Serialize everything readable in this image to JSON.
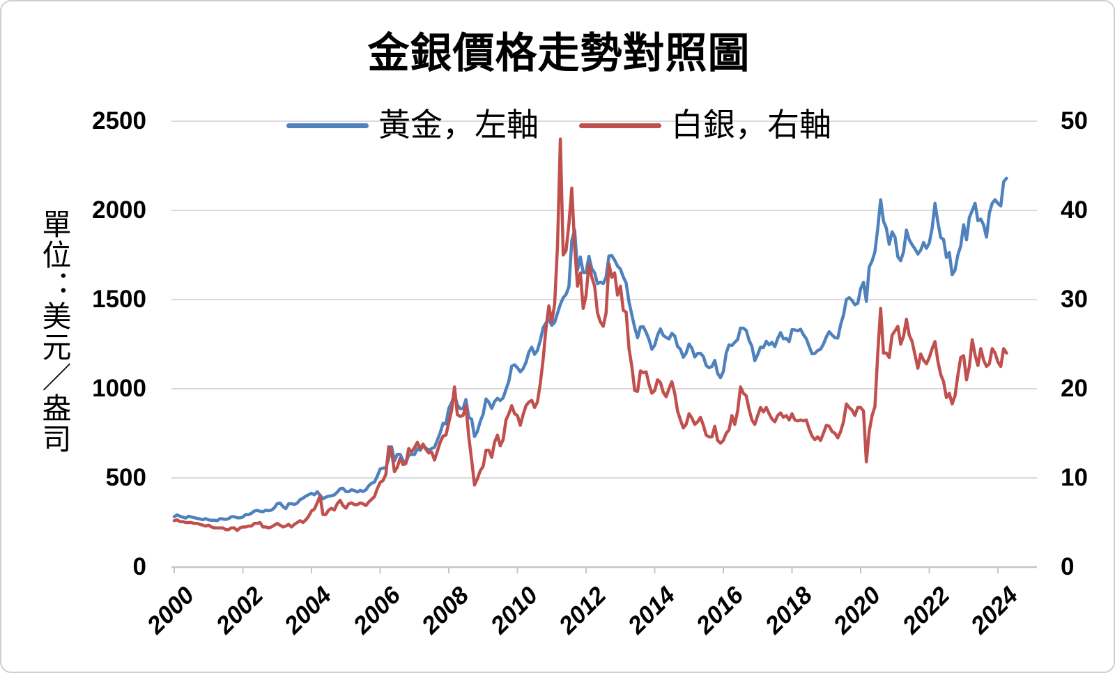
{
  "title": "金銀價格走勢對照圖",
  "y_left": {
    "title": "單位：美元／盎司",
    "ticks": [
      0,
      500,
      1000,
      1500,
      2000,
      2500
    ]
  },
  "y_right": {
    "ticks": [
      0,
      10,
      20,
      30,
      40,
      50
    ]
  },
  "x_axis": {
    "ticks": [
      2000,
      2002,
      2004,
      2006,
      2008,
      2010,
      2012,
      2014,
      2016,
      2018,
      2020,
      2022,
      2024
    ]
  },
  "legend": [
    {
      "label": "黃金，左軸",
      "color": "#4F81BD"
    },
    {
      "label": "白銀，右軸",
      "color": "#C0504D"
    }
  ],
  "colors": {
    "gold": "#4F81BD",
    "silver": "#C0504D",
    "grid": "#D9D9D9",
    "axis": "#C6C6C6",
    "text": "#000000"
  },
  "chart_data": {
    "type": "line",
    "title": "金銀價格走勢對照圖",
    "x_start_year": 2000,
    "x_step_months": 1,
    "x_end_approx": 2024.25,
    "x_tick_labels": [
      2000,
      2002,
      2004,
      2006,
      2008,
      2010,
      2012,
      2014,
      2016,
      2018,
      2020,
      2022,
      2024
    ],
    "grid": "horizontal",
    "legend_position": "top-center",
    "series": [
      {
        "name": "黃金，左軸",
        "axis": "left",
        "unit": "USD/oz",
        "color": "#4F81BD",
        "ylim": [
          0,
          2500
        ],
        "values": [
          283,
          293,
          285,
          280,
          275,
          285,
          281,
          277,
          273,
          270,
          266,
          272,
          265,
          262,
          263,
          260,
          272,
          270,
          267,
          272,
          283,
          283,
          276,
          276,
          281,
          295,
          294,
          302,
          314,
          318,
          313,
          310,
          319,
          316,
          319,
          332,
          356,
          359,
          340,
          328,
          355,
          356,
          351,
          359,
          378,
          386,
          398,
          406,
          414,
          405,
          423,
          403,
          383,
          392,
          398,
          400,
          405,
          420,
          439,
          442,
          424,
          423,
          434,
          429,
          421,
          430,
          424,
          433,
          456,
          470,
          476,
          510,
          550,
          555,
          557,
          610,
          675,
          596,
          633,
          632,
          599,
          585,
          627,
          632,
          631,
          664,
          655,
          679,
          667,
          655,
          665,
          672,
          712,
          754,
          806,
          803,
          890,
          922,
          968,
          909,
          888,
          889,
          940,
          839,
          829,
          732,
          760,
          816,
          858,
          943,
          924,
          890,
          928,
          946,
          934,
          949,
          996,
          1043,
          1127,
          1134,
          1118,
          1095,
          1113,
          1148,
          1205,
          1233,
          1193,
          1215,
          1271,
          1342,
          1369,
          1391,
          1356,
          1372,
          1424,
          1473,
          1510,
          1529,
          1573,
          1830,
          1890,
          1666,
          1739,
          1652,
          1652,
          1742,
          1673,
          1650,
          1589,
          1598,
          1590,
          1626,
          1744,
          1747,
          1721,
          1688,
          1671,
          1627,
          1593,
          1487,
          1414,
          1343,
          1286,
          1347,
          1348,
          1316,
          1276,
          1221,
          1244,
          1301,
          1336,
          1299,
          1288,
          1279,
          1311,
          1296,
          1237,
          1222,
          1176,
          1200,
          1251,
          1227,
          1178,
          1198,
          1199,
          1181,
          1130,
          1118,
          1125,
          1159,
          1086,
          1062,
          1097,
          1200,
          1246,
          1242,
          1260,
          1276,
          1340,
          1340,
          1327,
          1272,
          1238,
          1157,
          1192,
          1234,
          1231,
          1266,
          1246,
          1260,
          1236,
          1283,
          1315,
          1280,
          1282,
          1264,
          1331,
          1330,
          1325,
          1334,
          1303,
          1281,
          1238,
          1196,
          1198,
          1215,
          1221,
          1250,
          1291,
          1320,
          1301,
          1286,
          1284,
          1359,
          1413,
          1500,
          1511,
          1495,
          1471,
          1479,
          1561,
          1597,
          1490,
          1683,
          1716,
          1768,
          1900,
          2060,
          1940,
          1900,
          1810,
          1880,
          1850,
          1740,
          1718,
          1768,
          1890,
          1835,
          1807,
          1784,
          1755,
          1777,
          1820,
          1787,
          1817,
          1900,
          2040,
          1934,
          1848,
          1837,
          1736,
          1765,
          1640,
          1664,
          1750,
          1800,
          1920,
          1835,
          1960,
          1999,
          2040,
          1942,
          1951,
          1918,
          1850,
          1985,
          2040,
          2060,
          2039,
          2025,
          2160,
          2180
        ]
      },
      {
        "name": "白銀，右軸",
        "axis": "right",
        "unit": "USD/oz",
        "color": "#C0504D",
        "ylim": [
          0,
          50
        ],
        "values": [
          5.2,
          5.3,
          5.1,
          5.1,
          5.0,
          5.0,
          5.0,
          4.9,
          4.9,
          4.8,
          4.7,
          4.6,
          4.7,
          4.5,
          4.4,
          4.4,
          4.4,
          4.4,
          4.2,
          4.2,
          4.4,
          4.4,
          4.1,
          4.4,
          4.5,
          4.5,
          4.6,
          4.6,
          4.9,
          4.9,
          5.0,
          4.5,
          4.5,
          4.4,
          4.5,
          4.7,
          4.9,
          4.7,
          4.5,
          4.6,
          4.8,
          4.5,
          4.8,
          5.0,
          5.2,
          5.0,
          5.3,
          5.7,
          6.3,
          6.5,
          7.2,
          8.0,
          5.9,
          5.9,
          6.4,
          6.6,
          6.4,
          7.1,
          7.5,
          6.9,
          6.6,
          7.1,
          7.2,
          7.0,
          7.0,
          7.2,
          7.1,
          6.9,
          7.3,
          7.6,
          7.9,
          8.8,
          9.5,
          9.7,
          10.4,
          13.5,
          13.0,
          10.7,
          11.2,
          12.2,
          11.5,
          11.6,
          13.3,
          12.9,
          13.4,
          14.0,
          13.3,
          13.8,
          13.2,
          12.8,
          12.9,
          12.0,
          13.0,
          14.0,
          14.7,
          14.8,
          16.2,
          17.6,
          20.2,
          17.1,
          16.9,
          17.0,
          18.1,
          14.6,
          12.0,
          9.2,
          9.9,
          10.8,
          11.3,
          13.1,
          13.1,
          12.3,
          14.0,
          14.8,
          13.6,
          14.3,
          16.5,
          17.2,
          18.1,
          17.2,
          17.0,
          15.9,
          17.1,
          18.1,
          18.5,
          18.7,
          17.9,
          18.5,
          20.6,
          23.3,
          26.8,
          29.3,
          27.5,
          29.5,
          36.0,
          48.0,
          35.0,
          35.5,
          38.5,
          42.5,
          36.0,
          31.5,
          33.0,
          29.0,
          30.5,
          34.0,
          32.5,
          31.5,
          28.5,
          27.5,
          27.0,
          28.5,
          34.0,
          32.5,
          33.0,
          30.5,
          31.5,
          28.8,
          28.6,
          24.5,
          22.5,
          19.8,
          19.7,
          22.0,
          21.8,
          21.9,
          20.5,
          19.5,
          19.8,
          21.0,
          20.7,
          19.6,
          19.1,
          20.0,
          20.8,
          19.5,
          17.5,
          16.5,
          15.6,
          16.0,
          17.2,
          16.7,
          16.0,
          16.3,
          16.8,
          15.9,
          14.8,
          14.6,
          14.6,
          15.8,
          14.2,
          13.9,
          14.2,
          15.0,
          15.4,
          17.0,
          16.0,
          17.5,
          20.2,
          19.5,
          19.2,
          17.7,
          16.5,
          16.0,
          17.0,
          17.9,
          17.4,
          17.9,
          17.2,
          16.6,
          16.3,
          17.0,
          17.3,
          16.8,
          17.0,
          16.5,
          17.2,
          16.5,
          16.4,
          16.5,
          16.4,
          16.5,
          15.5,
          14.7,
          14.3,
          14.6,
          14.2,
          15.0,
          15.9,
          15.8,
          15.2,
          15.0,
          14.5,
          15.2,
          16.3,
          18.3,
          17.9,
          17.6,
          17.0,
          17.9,
          17.9,
          17.5,
          11.8,
          15.2,
          17.0,
          18.0,
          24.0,
          29.0,
          24.0,
          24.0,
          23.5,
          26.0,
          26.5,
          27.0,
          25.0,
          25.9,
          27.8,
          26.0,
          25.3,
          23.8,
          22.3,
          23.9,
          23.2,
          22.8,
          23.5,
          24.5,
          25.3,
          23.1,
          21.6,
          20.8,
          19.0,
          19.5,
          18.3,
          19.2,
          21.5,
          23.5,
          23.7,
          21.0,
          22.5,
          25.5,
          23.8,
          22.6,
          24.5,
          23.2,
          22.5,
          22.8,
          24.5,
          24.0,
          23.0,
          22.5,
          24.5,
          24.0
        ]
      }
    ]
  }
}
